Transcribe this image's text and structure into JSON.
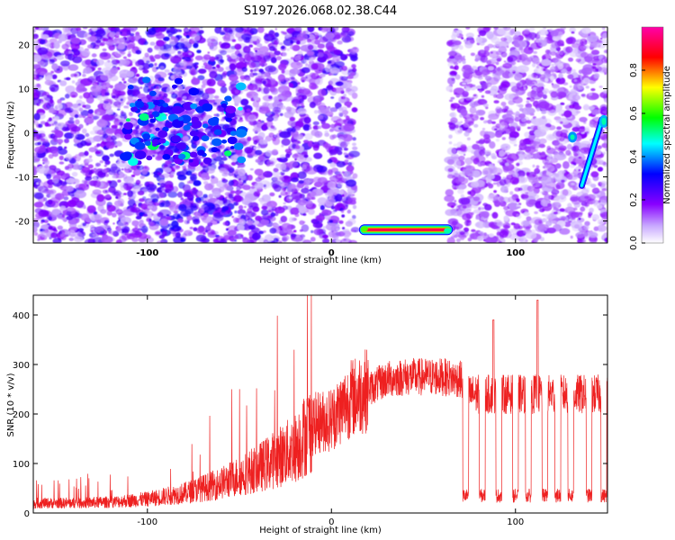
{
  "chart_data": [
    {
      "type": "heatmap",
      "title": "S197.2026.068.02.38.C44",
      "xlabel": "Height of straight line (km)",
      "ylabel": "Frequency (Hz)",
      "xlim": [
        -162,
        150
      ],
      "ylim": [
        -25,
        24
      ],
      "xticks": [
        -100,
        0,
        100
      ],
      "yticks": [
        20,
        10,
        0,
        -10,
        -20
      ],
      "colorbar": {
        "label": "Normalized spectral amplitude",
        "range": [
          0.0,
          1.0
        ],
        "ticks": [
          0.0,
          0.2,
          0.4,
          0.6,
          0.8
        ],
        "colormap": [
          "#ff00aa",
          "#ff0000",
          "#ffff00",
          "#00ff00",
          "#00ffff",
          "#0000ff",
          "#8800ff",
          "#ffffff"
        ]
      },
      "features": [
        {
          "name": "noise band",
          "x_range": [
            -162,
            -104
          ],
          "level": 0.2
        },
        {
          "name": "noise band",
          "x_range": [
            -104,
            -52
          ],
          "level": 0.25
        },
        {
          "name": "noise band",
          "x_range": [
            -52,
            13
          ],
          "level": 0.2
        },
        {
          "name": "noise band",
          "x_range": [
            64,
            150
          ],
          "level": 0.15
        },
        {
          "name": "signal cluster",
          "x": -75,
          "y": 0,
          "level": 0.45
        },
        {
          "name": "horizontal tone",
          "x_range": [
            15,
            66
          ],
          "y": -22,
          "level": 1.0
        },
        {
          "name": "chirp",
          "x_range": [
            136,
            150
          ],
          "y_range": [
            -12,
            3
          ],
          "level": 0.5
        }
      ]
    },
    {
      "type": "line",
      "title": "",
      "xlabel": "Height of straight line (km)",
      "ylabel": "SNR (10 * v/v)",
      "xlim": [
        -162,
        150
      ],
      "ylim": [
        0,
        440
      ],
      "xticks": [
        -100,
        0,
        100
      ],
      "yticks": [
        0,
        100,
        200,
        300,
        400
      ],
      "series_color": "#ee2020",
      "series": [
        {
          "name": "SNR envelope",
          "x": [
            -162,
            -140,
            -120,
            -100,
            -80,
            -60,
            -40,
            -20,
            -10,
            0,
            10,
            20,
            30,
            40,
            50,
            60,
            70
          ],
          "values": [
            20,
            20,
            22,
            28,
            40,
            60,
            90,
            130,
            180,
            190,
            230,
            250,
            270,
            275,
            275,
            275,
            270
          ]
        }
      ],
      "dropouts": {
        "x": [
          73,
          82,
          91,
          100,
          107,
          116,
          123,
          130,
          140,
          148
        ],
        "low_value": 35,
        "high_value": 240
      },
      "spikes": [
        {
          "x": 88,
          "value": 390
        },
        {
          "x": 112,
          "value": 430
        }
      ]
    }
  ]
}
